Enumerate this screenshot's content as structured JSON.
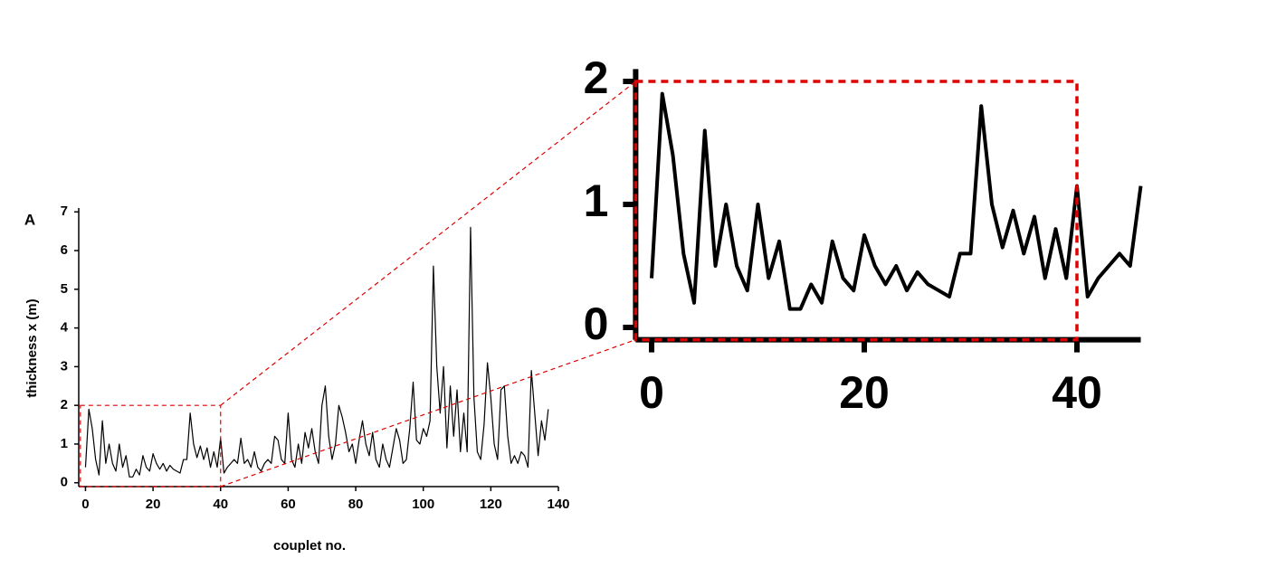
{
  "chart_data": [
    {
      "type": "line",
      "panel_label": "A",
      "x_label": "couplet no.",
      "y_label": "thickness x (m)",
      "x": [
        0,
        1,
        2,
        3,
        4,
        5,
        6,
        7,
        8,
        9,
        10,
        11,
        12,
        13,
        14,
        15,
        16,
        17,
        18,
        19,
        20,
        21,
        22,
        23,
        24,
        25,
        26,
        27,
        28,
        29,
        30,
        31,
        32,
        33,
        34,
        35,
        36,
        37,
        38,
        39,
        40,
        41,
        42,
        43,
        44,
        45,
        46,
        47,
        48,
        49,
        50,
        51,
        52,
        53,
        54,
        55,
        56,
        57,
        58,
        59,
        60,
        61,
        62,
        63,
        64,
        65,
        66,
        67,
        68,
        69,
        70,
        71,
        72,
        73,
        74,
        75,
        76,
        77,
        78,
        79,
        80,
        81,
        82,
        83,
        84,
        85,
        86,
        87,
        88,
        89,
        90,
        91,
        92,
        93,
        94,
        95,
        96,
        97,
        98,
        99,
        100,
        101,
        102,
        103,
        104,
        105,
        106,
        107,
        108,
        109,
        110,
        111,
        112,
        113,
        114,
        115,
        116,
        117,
        118,
        119,
        120,
        121,
        122,
        123,
        124,
        125,
        126,
        127,
        128,
        129,
        130,
        131,
        132,
        133,
        134,
        135,
        136,
        137
      ],
      "series": [
        {
          "color": "#000000",
          "values": [
            0.4,
            1.9,
            1.4,
            0.6,
            0.2,
            1.6,
            0.5,
            1.0,
            0.5,
            0.3,
            1.0,
            0.4,
            0.7,
            0.15,
            0.15,
            0.35,
            0.2,
            0.7,
            0.4,
            0.3,
            0.75,
            0.5,
            0.35,
            0.5,
            0.3,
            0.45,
            0.35,
            0.3,
            0.25,
            0.6,
            0.6,
            1.8,
            1.0,
            0.65,
            0.95,
            0.6,
            0.9,
            0.4,
            0.8,
            0.4,
            1.15,
            0.25,
            0.4,
            0.5,
            0.6,
            0.5,
            1.15,
            0.5,
            0.6,
            0.4,
            0.8,
            0.4,
            0.3,
            0.5,
            0.6,
            0.5,
            1.2,
            1.1,
            0.6,
            0.5,
            1.8,
            0.6,
            0.4,
            1.0,
            0.5,
            1.3,
            0.9,
            1.4,
            0.8,
            0.5,
            2.0,
            2.5,
            1.2,
            0.6,
            1.0,
            2.0,
            1.7,
            1.3,
            0.8,
            1.0,
            0.5,
            1.1,
            1.6,
            1.0,
            0.7,
            1.3,
            0.6,
            0.4,
            1.0,
            0.6,
            0.4,
            0.9,
            1.4,
            1.1,
            0.5,
            0.6,
            1.4,
            2.6,
            1.1,
            1.0,
            1.4,
            1.2,
            1.6,
            5.6,
            3.0,
            1.8,
            3.0,
            0.9,
            2.5,
            1.2,
            2.4,
            0.8,
            1.8,
            0.8,
            6.6,
            2.2,
            0.8,
            0.6,
            1.5,
            3.1,
            2.2,
            1.0,
            0.6,
            2.4,
            2.5,
            1.2,
            0.5,
            0.7,
            0.5,
            0.8,
            0.7,
            0.4,
            2.9,
            1.8,
            0.7,
            1.6,
            1.1,
            1.9
          ]
        }
      ],
      "xlim": [
        -2,
        140
      ],
      "xticks": [
        0,
        20,
        40,
        60,
        80,
        100,
        120,
        140
      ],
      "ylim": [
        -0.1,
        7.1
      ],
      "yticks": [
        0,
        1,
        2,
        3,
        4,
        5,
        6,
        7
      ],
      "zoom_region": {
        "xlim": [
          -1.5,
          40
        ],
        "ylim": [
          -0.1,
          2
        ],
        "color": "#e00000"
      }
    },
    {
      "type": "line",
      "x": [
        0,
        1,
        2,
        3,
        4,
        5,
        6,
        7,
        8,
        9,
        10,
        11,
        12,
        13,
        14,
        15,
        16,
        17,
        18,
        19,
        20,
        21,
        22,
        23,
        24,
        25,
        26,
        27,
        28,
        29,
        30,
        31,
        32,
        33,
        34,
        35,
        36,
        37,
        38,
        39,
        40,
        41,
        42,
        43,
        44,
        45,
        46
      ],
      "series": [
        {
          "color": "#000000",
          "values": [
            0.4,
            1.9,
            1.4,
            0.6,
            0.2,
            1.6,
            0.5,
            1.0,
            0.5,
            0.3,
            1.0,
            0.4,
            0.7,
            0.15,
            0.15,
            0.35,
            0.2,
            0.7,
            0.4,
            0.3,
            0.75,
            0.5,
            0.35,
            0.5,
            0.3,
            0.45,
            0.35,
            0.3,
            0.25,
            0.6,
            0.6,
            1.8,
            1.0,
            0.65,
            0.95,
            0.6,
            0.9,
            0.4,
            0.8,
            0.4,
            1.15,
            0.25,
            0.4,
            0.5,
            0.6,
            0.5,
            1.15
          ]
        }
      ],
      "xlim": [
        -1.5,
        46
      ],
      "xticks": [
        0,
        20,
        40
      ],
      "ylim": [
        -0.1,
        2.1
      ],
      "yticks": [
        0,
        1,
        2
      ],
      "zoom_region": {
        "xlim": [
          -1.5,
          40
        ],
        "ylim": [
          -0.1,
          2
        ],
        "color": "#e00000"
      }
    }
  ]
}
